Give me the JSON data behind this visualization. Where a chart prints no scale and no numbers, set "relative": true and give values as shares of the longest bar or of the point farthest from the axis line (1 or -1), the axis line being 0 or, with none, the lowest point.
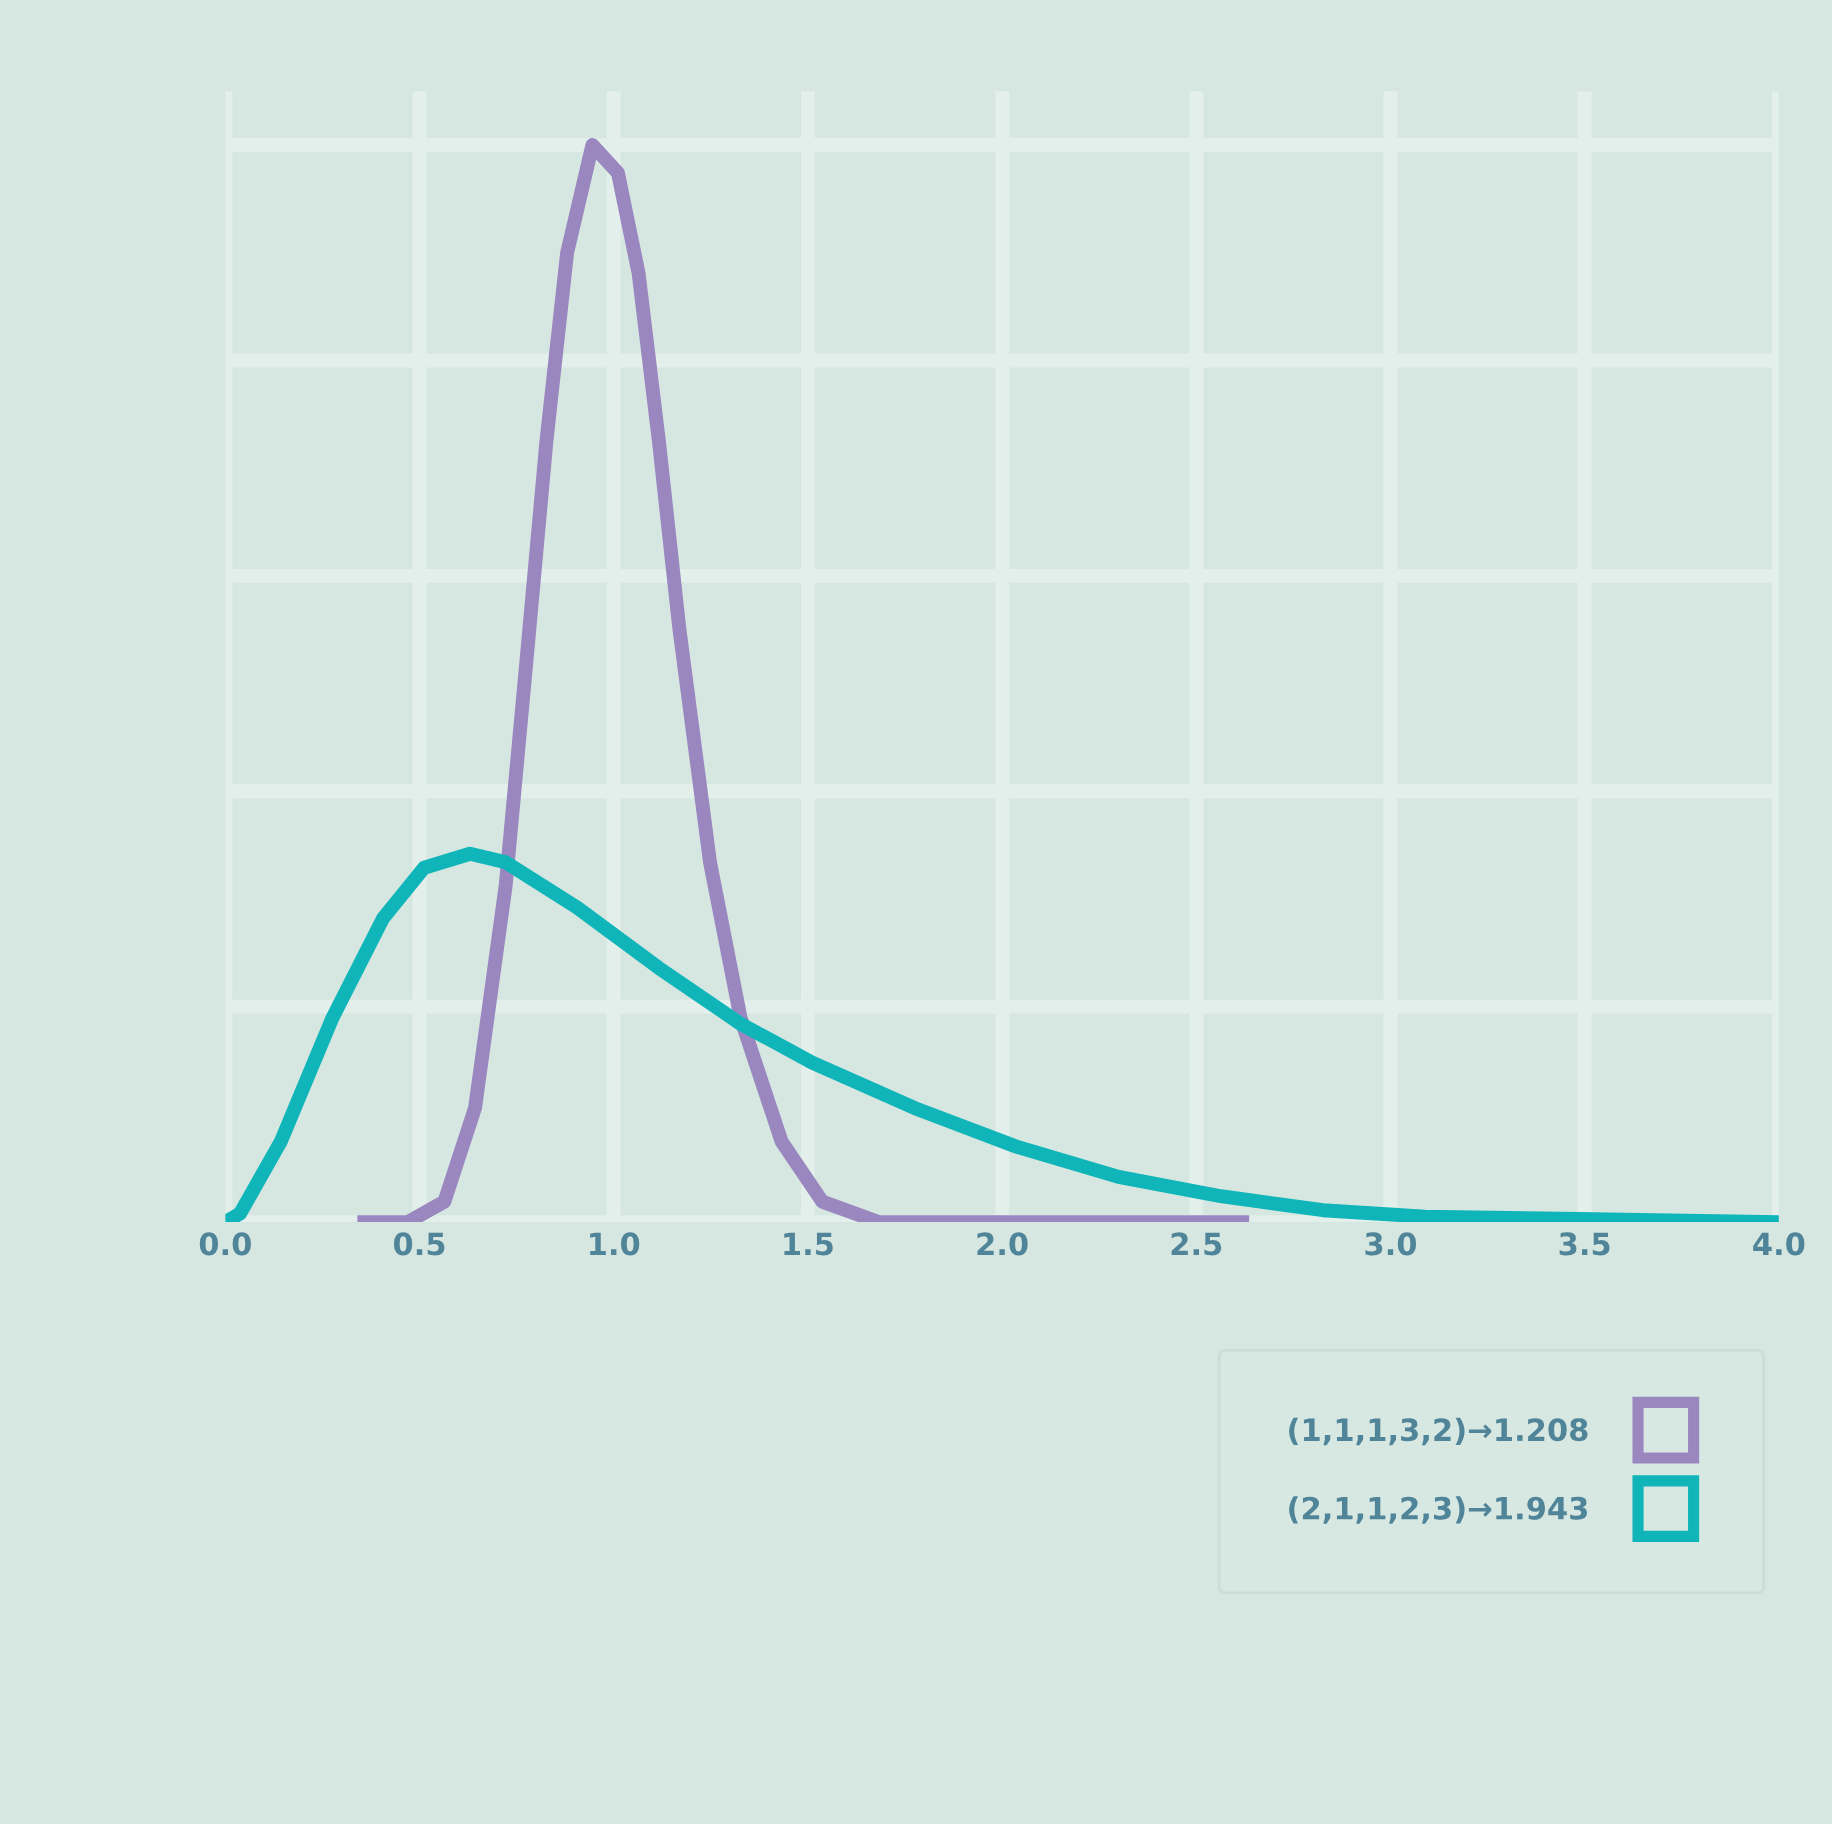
{
  "chart_data": {
    "type": "line",
    "relative": true,
    "x": [
      0.34,
      0.47,
      0.564,
      0.643,
      0.722,
      0.775,
      0.827,
      0.88,
      0.945,
      1.011,
      1.064,
      1.116,
      1.169,
      1.248,
      1.327,
      1.432,
      1.537,
      1.682,
      2.636
    ],
    "series": [
      {
        "name": "(1,1,1,3,2)→1.208",
        "color": "#9b87c0",
        "values": [
          0,
          0,
          0.019,
          0.106,
          0.313,
          0.52,
          0.726,
          0.9,
          1.0,
          0.974,
          0.881,
          0.726,
          0.551,
          0.334,
          0.189,
          0.075,
          0.019,
          0,
          0
        ]
      },
      {
        "name": "(2,1,1,2,3)→1.943",
        "color": "#0fb5b8",
        "x": [
          0.0,
          0.038,
          0.143,
          0.275,
          0.406,
          0.512,
          0.63,
          0.722,
          0.906,
          1.116,
          1.327,
          1.511,
          1.774,
          2.037,
          2.3,
          2.563,
          2.826,
          3.089,
          3.483,
          4.0
        ],
        "values": [
          0,
          0.008,
          0.075,
          0.189,
          0.282,
          0.329,
          0.342,
          0.334,
          0.292,
          0.236,
          0.184,
          0.148,
          0.106,
          0.07,
          0.042,
          0.024,
          0.011,
          0.005,
          0.003,
          0
        ]
      }
    ],
    "xlim": [
      0,
      4
    ],
    "xticks": [
      {
        "value": 0,
        "label": "0.0"
      },
      {
        "value": 0.5,
        "label": "0.5"
      },
      {
        "value": 1,
        "label": "1.0"
      },
      {
        "value": 1.5,
        "label": "1.5"
      },
      {
        "value": 2,
        "label": "2.0"
      },
      {
        "value": 2.5,
        "label": "2.5"
      },
      {
        "value": 3,
        "label": "3.0"
      },
      {
        "value": 3.5,
        "label": "3.5"
      },
      {
        "value": 4,
        "label": "4.0"
      }
    ],
    "tick_labels": "x",
    "grid": true,
    "legend": "bottom right",
    "marker": "none",
    "line_style": "solid"
  }
}
